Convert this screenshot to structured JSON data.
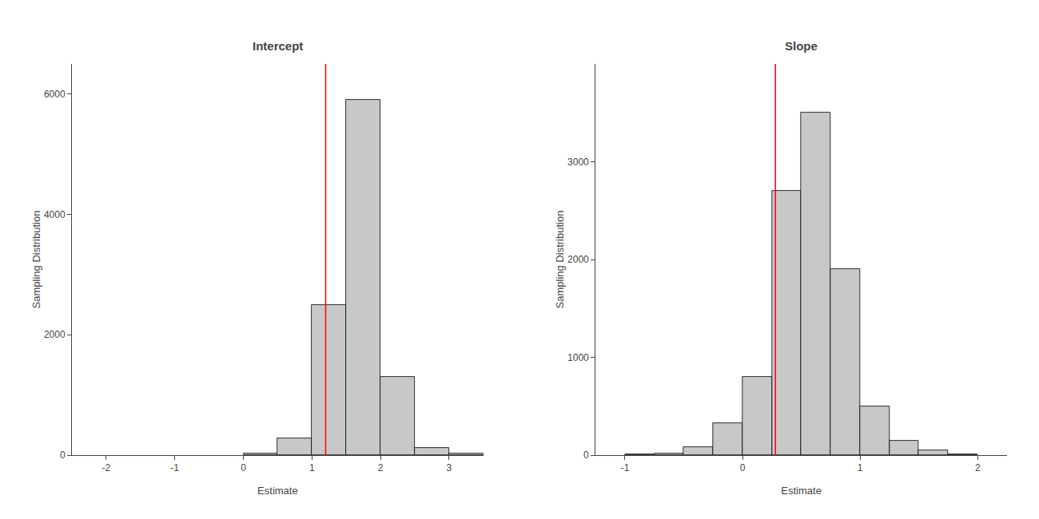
{
  "chart_data": [
    {
      "type": "histogram",
      "title": "Intercept",
      "xlabel": "Estimate",
      "ylabel": "Sampling Distribution",
      "bins": [
        -2.5,
        -2.0,
        -1.5,
        -1.0,
        -0.5,
        0.0,
        0.5,
        1.0,
        1.5,
        2.0,
        2.5,
        3.0,
        3.5
      ],
      "values": [
        0,
        0,
        0,
        0,
        0,
        30,
        280,
        2500,
        5900,
        1300,
        120,
        20
      ],
      "color": "#c8c8c8",
      "xlim": [
        -2.5,
        3.5
      ],
      "ylim": [
        0,
        6500
      ],
      "xticks": [
        -2,
        -1,
        0,
        1,
        2,
        3
      ],
      "yticks": [
        0,
        2000,
        4000,
        6000
      ],
      "grid": false,
      "lines": [
        {
          "x": 1.2,
          "color": "#ff0000"
        }
      ]
    },
    {
      "type": "histogram",
      "title": "Slope",
      "xlabel": "Estimate",
      "ylabel": "Sampling Distribution",
      "bins": [
        -1.0,
        -0.75,
        -0.5,
        -0.25,
        0.0,
        0.25,
        0.5,
        0.75,
        1.0,
        1.25,
        1.5,
        1.75,
        2.0
      ],
      "values": [
        5,
        15,
        80,
        330,
        800,
        2700,
        3500,
        1900,
        500,
        150,
        50,
        10
      ],
      "color": "#c8c8c8",
      "xlim": [
        -1.25,
        2.25
      ],
      "ylim": [
        0,
        4000
      ],
      "xticks": [
        -1,
        0,
        1,
        2
      ],
      "yticks": [
        0,
        1000,
        2000,
        3000
      ],
      "grid": false,
      "lines": [
        {
          "x": 0.28,
          "color": "#ff0000"
        }
      ]
    }
  ]
}
